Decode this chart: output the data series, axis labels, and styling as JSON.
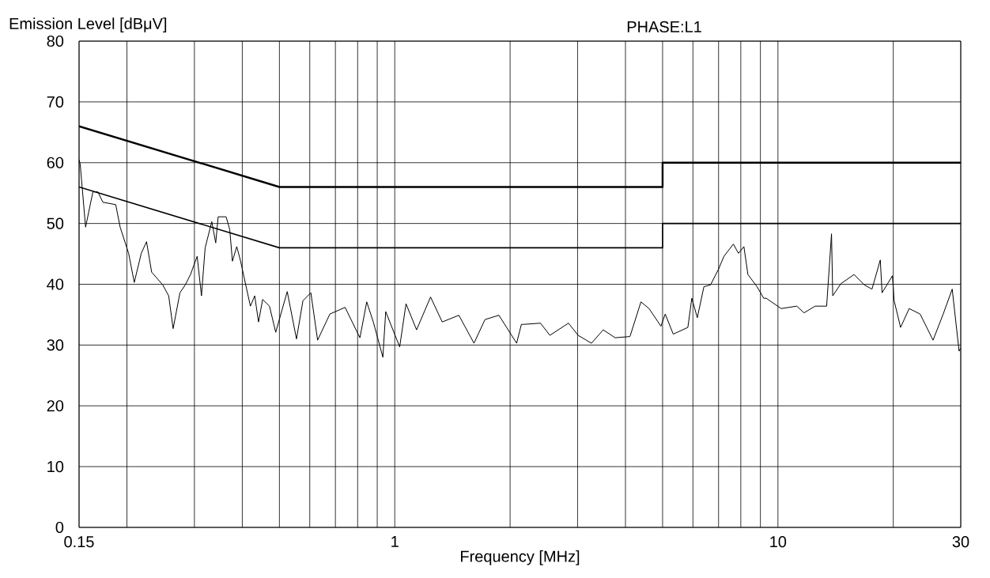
{
  "chart_data": {
    "type": "line",
    "xlabel": "Frequency [MHz]",
    "ylabel": "Emission Level [dBμV]",
    "annotations": [
      "PHASE:L1"
    ],
    "log": "x",
    "grid": true,
    "marker": "none",
    "line_style": "solid",
    "xlim": [
      0.15,
      30
    ],
    "ylim": [
      0,
      80
    ],
    "xticks": [
      {
        "value": 0.15,
        "label": "0.15"
      },
      {
        "value": 0.2,
        "label": null
      },
      {
        "value": 0.3,
        "label": null
      },
      {
        "value": 0.4,
        "label": null
      },
      {
        "value": 0.5,
        "label": null
      },
      {
        "value": 0.6,
        "label": null
      },
      {
        "value": 0.7,
        "label": null
      },
      {
        "value": 0.8,
        "label": null
      },
      {
        "value": 0.9,
        "label": null
      },
      1,
      {
        "value": 2,
        "label": null
      },
      {
        "value": 3,
        "label": null
      },
      {
        "value": 4,
        "label": null
      },
      {
        "value": 5,
        "label": null
      },
      {
        "value": 6,
        "label": null
      },
      {
        "value": 7,
        "label": null
      },
      {
        "value": 8,
        "label": null
      },
      {
        "value": 9,
        "label": null
      },
      10,
      {
        "value": 20,
        "label": null
      },
      30
    ],
    "yticks": [
      0,
      10,
      20,
      30,
      40,
      50,
      60,
      70,
      80
    ],
    "series": [
      {
        "color": "#000000",
        "x": [
          0.15,
          0.5,
          5,
          5,
          30
        ],
        "values": [
          66,
          56,
          56,
          60,
          60
        ]
      },
      {
        "color": "#000000",
        "x": [
          0.15,
          0.5,
          5,
          5,
          30
        ],
        "values": [
          56,
          46,
          46,
          50,
          50
        ]
      },
      {
        "color": "#000000",
        "x": [
          0.15,
          0.151,
          0.156,
          0.163,
          0.168,
          0.173,
          0.187,
          0.192,
          0.202,
          0.209,
          0.218,
          0.225,
          0.232,
          0.248,
          0.257,
          0.264,
          0.275,
          0.284,
          0.293,
          0.305,
          0.313,
          0.32,
          0.333,
          0.341,
          0.346,
          0.363,
          0.371,
          0.377,
          0.387,
          0.396,
          0.41,
          0.42,
          0.431,
          0.441,
          0.452,
          0.471,
          0.489,
          0.524,
          0.554,
          0.576,
          0.604,
          0.629,
          0.677,
          0.742,
          0.811,
          0.845,
          0.879,
          0.931,
          0.947,
          1.03,
          1.07,
          1.14,
          1.24,
          1.33,
          1.47,
          1.61,
          1.72,
          1.87,
          2.08,
          2.14,
          2.17,
          2.4,
          2.54,
          2.84,
          3.01,
          3.26,
          3.5,
          3.76,
          4.11,
          4.39,
          4.61,
          4.95,
          5.08,
          5.33,
          5.82,
          5.96,
          6.16,
          6.41,
          6.67,
          7.0,
          7.23,
          7.65,
          7.89,
          8.15,
          8.35,
          8.82,
          9.18,
          9.32,
          10.2,
          11.2,
          11.7,
          12.5,
          13.4,
          13.8,
          13.9,
          14.6,
          15.8,
          16.8,
          17.6,
          18.5,
          18.7,
          19.9,
          20.1,
          20.9,
          22.0,
          23.5,
          25.4,
          27.0,
          28.5,
          29.7,
          30
        ],
        "values": [
          60.5,
          59.8,
          49.4,
          55.2,
          55.2,
          53.5,
          53.1,
          49.4,
          45.1,
          40.3,
          45.1,
          47.0,
          42.0,
          39.9,
          38.1,
          32.7,
          38.6,
          39.9,
          41.6,
          44.6,
          38.1,
          46.0,
          50.3,
          46.8,
          51.1,
          51.1,
          49.0,
          43.8,
          46.2,
          43.8,
          39.4,
          36.4,
          38.1,
          33.8,
          37.5,
          36.4,
          32.1,
          38.8,
          31.0,
          37.3,
          38.6,
          30.8,
          35.1,
          36.2,
          31.2,
          37.1,
          33.8,
          28.0,
          35.5,
          29.7,
          36.8,
          32.5,
          37.9,
          33.8,
          34.9,
          30.3,
          34.2,
          34.9,
          30.3,
          33.4,
          33.4,
          33.6,
          31.6,
          33.6,
          31.6,
          30.3,
          32.5,
          31.2,
          31.4,
          37.1,
          36.0,
          33.1,
          35.1,
          31.8,
          32.9,
          37.7,
          34.5,
          39.6,
          39.9,
          42.5,
          44.6,
          46.6,
          45.1,
          46.2,
          41.6,
          39.6,
          37.7,
          37.7,
          36.0,
          36.4,
          35.3,
          36.4,
          36.4,
          48.3,
          38.1,
          40.1,
          41.6,
          39.9,
          39.2,
          44.0,
          38.6,
          41.4,
          37.3,
          32.9,
          36.0,
          35.1,
          30.8,
          35.1,
          39.2,
          29.0,
          29.5
        ]
      }
    ]
  }
}
